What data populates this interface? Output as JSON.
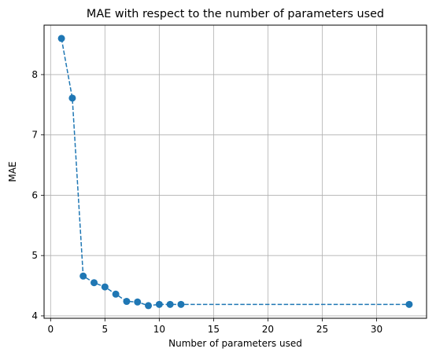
{
  "chart_data": {
    "type": "line",
    "title": "MAE with respect to the number of parameters used",
    "xlabel": "Number of parameters used",
    "ylabel": "MAE",
    "xlim": [
      -0.6,
      34.6
    ],
    "ylim": [
      3.96,
      8.82
    ],
    "xticks": [
      0,
      5,
      10,
      15,
      20,
      25,
      30
    ],
    "yticks": [
      4,
      5,
      6,
      7,
      8
    ],
    "grid": true,
    "line_style": "dashed",
    "marker": "circle",
    "color": "#1f77b4",
    "series": [
      {
        "x": [
          1,
          2,
          3,
          4,
          5,
          6,
          7,
          8,
          9,
          10,
          11,
          12,
          33
        ],
        "values": [
          8.6,
          7.61,
          4.66,
          4.55,
          4.48,
          4.36,
          4.24,
          4.23,
          4.17,
          4.19,
          4.19,
          4.19,
          4.19
        ]
      }
    ]
  }
}
